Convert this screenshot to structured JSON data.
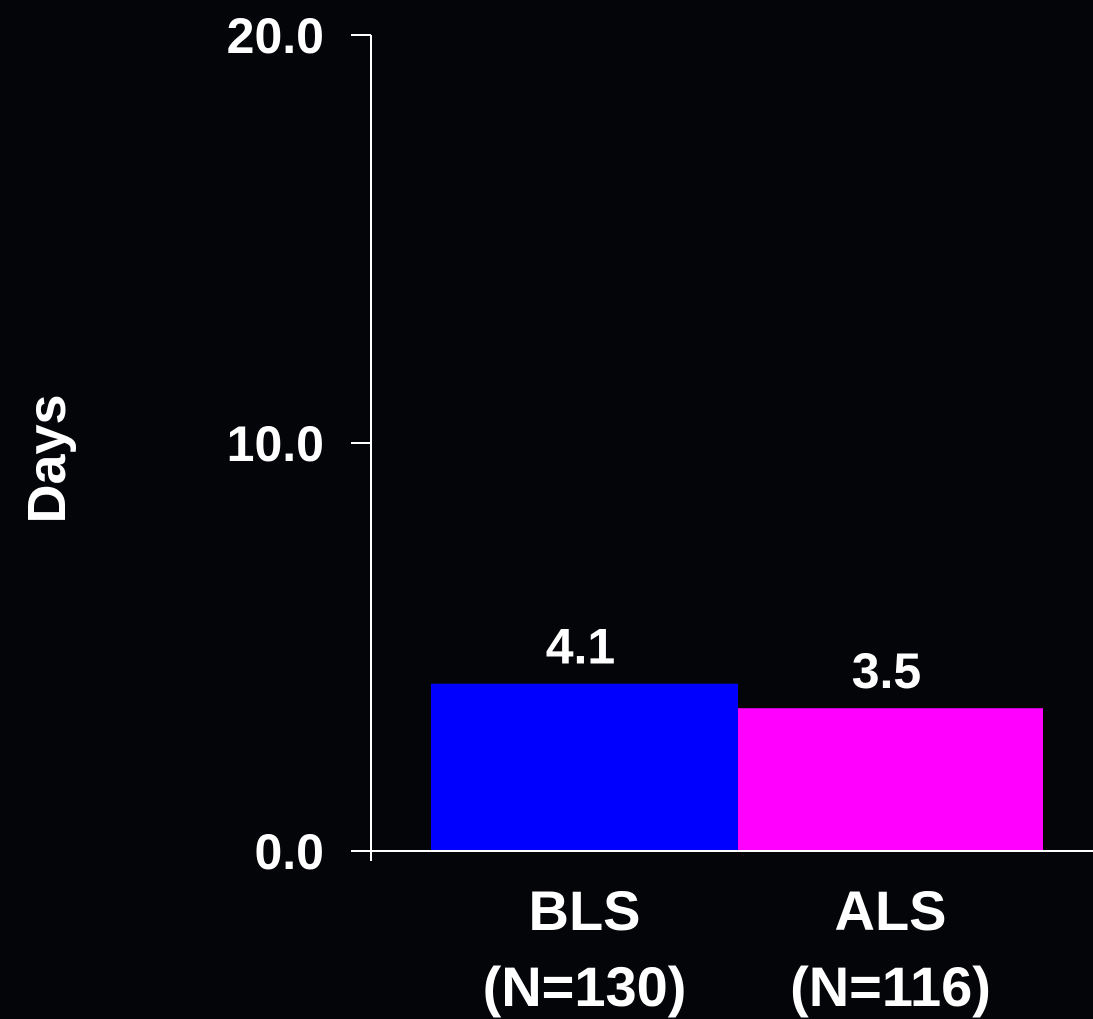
{
  "chart_data": {
    "type": "bar",
    "title": "",
    "xlabel": "",
    "ylabel": "Days",
    "ylim": [
      0,
      20
    ],
    "yticks": [
      0,
      10,
      20
    ],
    "ytick_labels": [
      "0.0",
      "10.0",
      "20.0"
    ],
    "grid": false,
    "categories": [
      {
        "name": "BLS",
        "n_label": "(N=130)"
      },
      {
        "name": "ALS",
        "n_label": "(N=116)"
      }
    ],
    "values": [
      4.1,
      3.5
    ],
    "value_labels": [
      "4.1",
      "3.5"
    ],
    "colors": [
      "#0000ff",
      "#ff00ff"
    ],
    "background": "#040508",
    "axis_color": "#ffffff"
  }
}
